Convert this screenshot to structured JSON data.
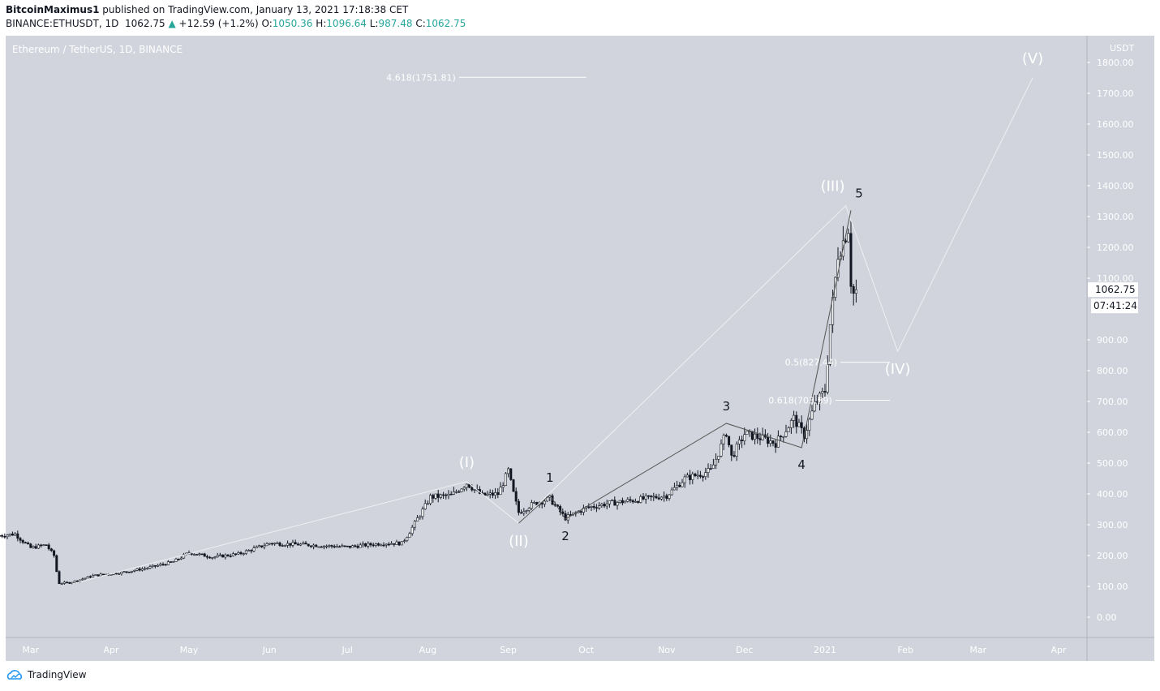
{
  "header": {
    "author": "BitcoinMaximus1",
    "published_text": "published on TradingView.com, January 13, 2021 17:18:38 CET",
    "symbol": "BINANCE:ETHUSDT, 1D",
    "last": "1062.75",
    "change": "+12.59 (+1.2%)",
    "o_label": "O:",
    "o": "1050.36",
    "h_label": "H:",
    "h": "1096.64",
    "l_label": "L:",
    "l": "987.48",
    "c_label": "C:",
    "c": "1062.75"
  },
  "chart_title": "Ethereum / TetherUS, 1D, BINANCE",
  "footer": {
    "brand": "TradingView"
  },
  "colors": {
    "background": "#d1d4dc",
    "up": "#ffffff",
    "down": "#131722",
    "wave": "#ffffff",
    "subwave": "#555555",
    "change_up": "#26a69a"
  },
  "chart_data": {
    "type": "candlestick",
    "currency_label": "USDT",
    "ylim": [
      -60,
      1880
    ],
    "y_ticks": [
      "1800.00",
      "1700.00",
      "1600.00",
      "1500.00",
      "1400.00",
      "1300.00",
      "1200.00",
      "1100.00",
      "900.00",
      "800.00",
      "700.00",
      "600.00",
      "500.00",
      "400.00",
      "300.00",
      "200.00",
      "100.00",
      "0.00"
    ],
    "x_range": [
      "2020-02-18",
      "2021-04-15"
    ],
    "x_ticks": [
      {
        "date": "2020-03-01",
        "label": "Mar"
      },
      {
        "date": "2020-04-01",
        "label": "Apr"
      },
      {
        "date": "2020-05-01",
        "label": "May"
      },
      {
        "date": "2020-06-01",
        "label": "Jun"
      },
      {
        "date": "2020-07-01",
        "label": "Jul"
      },
      {
        "date": "2020-08-01",
        "label": "Aug"
      },
      {
        "date": "2020-09-01",
        "label": "Sep"
      },
      {
        "date": "2020-10-01",
        "label": "Oct"
      },
      {
        "date": "2020-11-01",
        "label": "Nov"
      },
      {
        "date": "2020-12-01",
        "label": "Dec"
      },
      {
        "date": "2021-01-01",
        "label": "2021"
      },
      {
        "date": "2021-02-01",
        "label": "Feb"
      },
      {
        "date": "2021-03-01",
        "label": "Mar"
      },
      {
        "date": "2021-04-01",
        "label": "Apr"
      }
    ],
    "last_price_label": "1062.75",
    "countdown_label": "07:41:24",
    "price_path": [
      [
        "2020-02-18",
        265
      ],
      [
        "2020-02-24",
        270
      ],
      [
        "2020-03-01",
        225
      ],
      [
        "2020-03-07",
        235
      ],
      [
        "2020-03-10",
        200
      ],
      [
        "2020-03-12",
        110
      ],
      [
        "2020-03-16",
        112
      ],
      [
        "2020-03-25",
        135
      ],
      [
        "2020-04-05",
        145
      ],
      [
        "2020-04-15",
        160
      ],
      [
        "2020-04-25",
        180
      ],
      [
        "2020-05-01",
        210
      ],
      [
        "2020-05-10",
        195
      ],
      [
        "2020-05-20",
        205
      ],
      [
        "2020-06-01",
        240
      ],
      [
        "2020-06-15",
        235
      ],
      [
        "2020-07-01",
        228
      ],
      [
        "2020-07-15",
        240
      ],
      [
        "2020-07-22",
        240
      ],
      [
        "2020-07-28",
        320
      ],
      [
        "2020-08-02",
        390
      ],
      [
        "2020-08-10",
        395
      ],
      [
        "2020-08-16",
        435
      ],
      [
        "2020-08-22",
        395
      ],
      [
        "2020-08-28",
        400
      ],
      [
        "2020-09-01",
        475
      ],
      [
        "2020-09-05",
        340
      ],
      [
        "2020-09-10",
        365
      ],
      [
        "2020-09-17",
        385
      ],
      [
        "2020-09-23",
        322
      ],
      [
        "2020-10-01",
        355
      ],
      [
        "2020-10-10",
        370
      ],
      [
        "2020-10-20",
        380
      ],
      [
        "2020-11-01",
        395
      ],
      [
        "2020-11-08",
        450
      ],
      [
        "2020-11-18",
        475
      ],
      [
        "2020-11-24",
        600
      ],
      [
        "2020-11-26",
        520
      ],
      [
        "2020-12-01",
        595
      ],
      [
        "2020-12-08",
        580
      ],
      [
        "2020-12-13",
        565
      ],
      [
        "2020-12-20",
        645
      ],
      [
        "2020-12-24",
        590
      ],
      [
        "2020-12-28",
        690
      ],
      [
        "2021-01-01",
        735
      ],
      [
        "2021-01-03",
        950
      ],
      [
        "2021-01-06",
        1180
      ],
      [
        "2021-01-08",
        1220
      ],
      [
        "2021-01-10",
        1265
      ],
      [
        "2021-01-11",
        1090
      ],
      [
        "2021-01-12",
        1050
      ],
      [
        "2021-01-13",
        1062.75
      ]
    ],
    "waves": {
      "primary": [
        {
          "label": "",
          "date": "2020-03-17",
          "price": 108
        },
        {
          "label": "(I)",
          "date": "2020-08-16",
          "price": 440
        },
        {
          "label": "(II)",
          "date": "2020-09-05",
          "price": 305
        },
        {
          "label": "(III)",
          "date": "2021-01-09",
          "price": 1335
        },
        {
          "label": "(IV)",
          "date": "2021-01-29",
          "price": 863
        },
        {
          "label": "(V)",
          "date": "2021-03-22",
          "price": 1750
        }
      ],
      "sub": [
        {
          "label": "",
          "date": "2020-09-05",
          "price": 305
        },
        {
          "label": "1",
          "date": "2020-09-17",
          "price": 397
        },
        {
          "label": "2",
          "date": "2020-09-23",
          "price": 318
        },
        {
          "label": "3",
          "date": "2020-11-24",
          "price": 629
        },
        {
          "label": "4",
          "date": "2020-12-23",
          "price": 550
        },
        {
          "label": "5",
          "date": "2021-01-11",
          "price": 1320
        }
      ]
    },
    "fib_levels": [
      {
        "label": "4.618(1751.81)",
        "price": 1751.81,
        "from": "2020-08-13",
        "to": "2020-10-01"
      },
      {
        "label": "0.5(827.44)",
        "price": 827.44,
        "from": "2021-01-07",
        "to": "2021-01-26"
      },
      {
        "label": "0.618(703.89)",
        "price": 703.89,
        "from": "2021-01-05",
        "to": "2021-01-26"
      }
    ]
  }
}
